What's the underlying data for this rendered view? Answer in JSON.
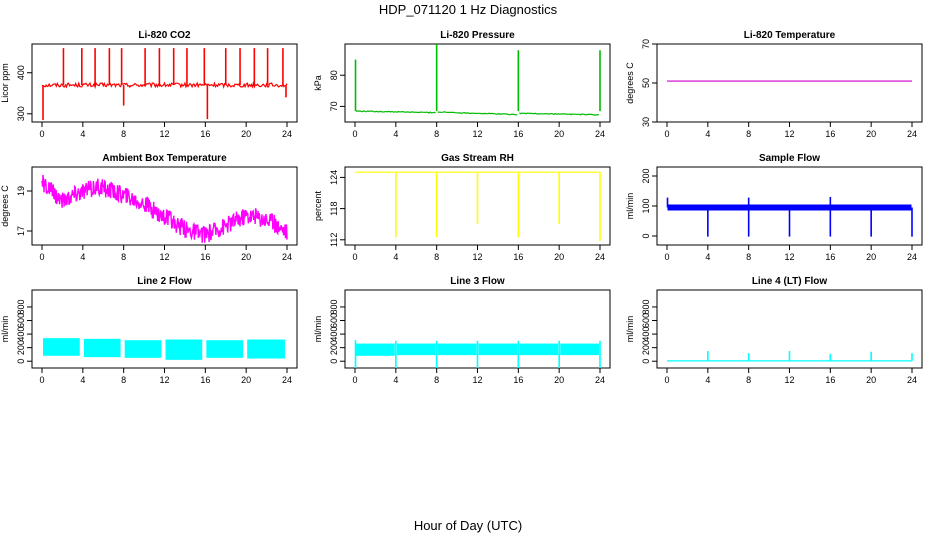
{
  "figure": {
    "title": "HDP_071120  1 Hz Diagnostics",
    "x_axis_title": "Hour of Day (UTC)"
  },
  "chart_data": [
    {
      "type": "line",
      "title": "Li-820 CO2",
      "ylabel": "Licor ppm",
      "color": "#ff0000",
      "xlim": [
        0,
        24
      ],
      "xticks": [
        0,
        4,
        8,
        12,
        16,
        20,
        24
      ],
      "ylim": [
        280,
        470
      ],
      "yticks": [
        300,
        400
      ],
      "baseline": 370,
      "noise": 5,
      "spikes_up": [
        [
          2.1,
          460
        ],
        [
          3.9,
          460
        ],
        [
          5.2,
          460
        ],
        [
          6.6,
          460
        ],
        [
          7.8,
          460
        ],
        [
          10.1,
          460
        ],
        [
          11.5,
          460
        ],
        [
          12.9,
          460
        ],
        [
          14.2,
          460
        ],
        [
          15.9,
          460
        ],
        [
          18.0,
          460
        ],
        [
          19.4,
          460
        ],
        [
          20.8,
          460
        ],
        [
          22.1,
          460
        ],
        [
          23.6,
          460
        ]
      ],
      "spikes_down": [
        [
          0.1,
          285
        ],
        [
          8.0,
          320
        ],
        [
          16.2,
          287
        ],
        [
          23.9,
          340
        ]
      ]
    },
    {
      "type": "line",
      "title": "Li-820 Pressure",
      "ylabel": "kPa",
      "color": "#00bb00",
      "xlim": [
        0,
        24
      ],
      "xticks": [
        0,
        4,
        8,
        12,
        16,
        20,
        24
      ],
      "ylim": [
        65,
        90
      ],
      "yticks": [
        70,
        80
      ],
      "segments": [
        [
          0.1,
          68.5
        ],
        [
          7.9,
          68.0
        ],
        [
          8.1,
          68.2
        ],
        [
          15.9,
          67.4
        ],
        [
          16.1,
          67.8
        ],
        [
          23.9,
          67.3
        ]
      ],
      "spikes_up": [
        [
          0.05,
          85
        ],
        [
          8.0,
          90
        ],
        [
          16.0,
          88
        ],
        [
          24.0,
          88
        ]
      ]
    },
    {
      "type": "line",
      "title": "Li-820 Temperature",
      "ylabel": "degrees C",
      "color": "#cc00cc",
      "xlim": [
        0,
        24
      ],
      "xticks": [
        0,
        4,
        8,
        12,
        16,
        20,
        24
      ],
      "ylim": [
        30,
        70
      ],
      "yticks": [
        30,
        50,
        70
      ],
      "constant": 51
    },
    {
      "type": "line",
      "title": "Ambient Box Temperature",
      "ylabel": "degrees C",
      "color": "#ff00ff",
      "xlim": [
        0,
        24
      ],
      "xticks": [
        0,
        4,
        8,
        12,
        16,
        20,
        24
      ],
      "ylim": [
        16.3,
        20.2
      ],
      "yticks": [
        17,
        19
      ],
      "curve": [
        [
          0,
          19.4
        ],
        [
          2,
          18.5
        ],
        [
          3.5,
          18.9
        ],
        [
          5.5,
          19.2
        ],
        [
          7.5,
          18.9
        ],
        [
          9.5,
          18.5
        ],
        [
          12,
          17.7
        ],
        [
          14,
          17.1
        ],
        [
          16,
          16.8
        ],
        [
          18,
          17.3
        ],
        [
          20,
          17.8
        ],
        [
          22,
          17.6
        ],
        [
          24,
          17.0
        ]
      ],
      "band": 0.45
    },
    {
      "type": "line",
      "title": "Gas Stream RH",
      "ylabel": "percent",
      "color": "#ffff00",
      "xlim": [
        0,
        24
      ],
      "xticks": [
        0,
        4,
        8,
        12,
        16,
        20,
        24
      ],
      "ylim": [
        111,
        126
      ],
      "yticks": [
        112,
        118,
        124
      ],
      "baseline": 125,
      "spikes_down": [
        [
          4.0,
          112.5
        ],
        [
          8.0,
          112.5
        ],
        [
          12.0,
          115
        ],
        [
          16.0,
          112.5
        ],
        [
          20.0,
          115
        ],
        [
          24.0,
          111.8
        ]
      ]
    },
    {
      "type": "line",
      "title": "Sample Flow",
      "ylabel": "ml/min",
      "color": "#0000ff",
      "xlim": [
        0,
        24
      ],
      "xticks": [
        0,
        4,
        8,
        12,
        16,
        20,
        24
      ],
      "ylim": [
        -30,
        230
      ],
      "yticks": [
        0,
        100,
        200
      ],
      "baseline": 95,
      "band": 10,
      "spikes_down": [
        [
          4.0,
          -2
        ],
        [
          8.0,
          -2
        ],
        [
          12.0,
          -2
        ],
        [
          16.0,
          -2
        ],
        [
          20.0,
          -2
        ],
        [
          24.0,
          -2
        ]
      ],
      "spikes_up": [
        [
          0.05,
          128
        ],
        [
          8.0,
          128
        ],
        [
          16.0,
          130
        ]
      ]
    },
    {
      "type": "line",
      "title": "Line 2 Flow",
      "ylabel": "ml/min",
      "color": "#00ffff",
      "xlim": [
        0,
        24
      ],
      "xticks": [
        0,
        4,
        8,
        12,
        16,
        20,
        24
      ],
      "ylim": [
        -100,
        1050
      ],
      "yticks": [
        0,
        200,
        400,
        600,
        800
      ],
      "blocks": [
        [
          0.1,
          3.7,
          80,
          340
        ],
        [
          4.1,
          7.7,
          60,
          330
        ],
        [
          8.1,
          11.7,
          50,
          310
        ],
        [
          12.1,
          15.7,
          20,
          320
        ],
        [
          16.1,
          19.7,
          50,
          310
        ],
        [
          20.1,
          23.8,
          40,
          320
        ]
      ]
    },
    {
      "type": "line",
      "title": "Line 3 Flow",
      "ylabel": "ml/min",
      "color": "#00ffff",
      "xlim": [
        0,
        24
      ],
      "xticks": [
        0,
        4,
        8,
        12,
        16,
        20,
        24
      ],
      "ylim": [
        -100,
        1050
      ],
      "yticks": [
        0,
        200,
        400,
        600,
        800
      ],
      "blocks": [
        [
          0.1,
          3.9,
          80,
          260
        ],
        [
          4.1,
          7.9,
          90,
          260
        ],
        [
          8.1,
          11.9,
          90,
          260
        ],
        [
          12.1,
          15.9,
          90,
          260
        ],
        [
          16.1,
          19.9,
          90,
          260
        ],
        [
          20.1,
          23.9,
          90,
          260
        ]
      ],
      "spikes_up": [
        [
          0.05,
          310
        ],
        [
          4.0,
          300
        ],
        [
          8.0,
          300
        ],
        [
          12.0,
          300
        ],
        [
          16.0,
          300
        ],
        [
          20.0,
          300
        ],
        [
          24.0,
          300
        ]
      ]
    },
    {
      "type": "line",
      "title": "Line 4 (LT) Flow",
      "ylabel": "ml/min",
      "color": "#00ffff",
      "xlim": [
        0,
        24
      ],
      "xticks": [
        0,
        4,
        8,
        12,
        16,
        20,
        24
      ],
      "ylim": [
        -100,
        1050
      ],
      "yticks": [
        0,
        200,
        400,
        600,
        800
      ],
      "baseline": 5,
      "spikes_up": [
        [
          4.0,
          150
        ],
        [
          8.0,
          120
        ],
        [
          12.0,
          150
        ],
        [
          16.0,
          110
        ],
        [
          20.0,
          140
        ],
        [
          24.0,
          120
        ]
      ]
    }
  ]
}
